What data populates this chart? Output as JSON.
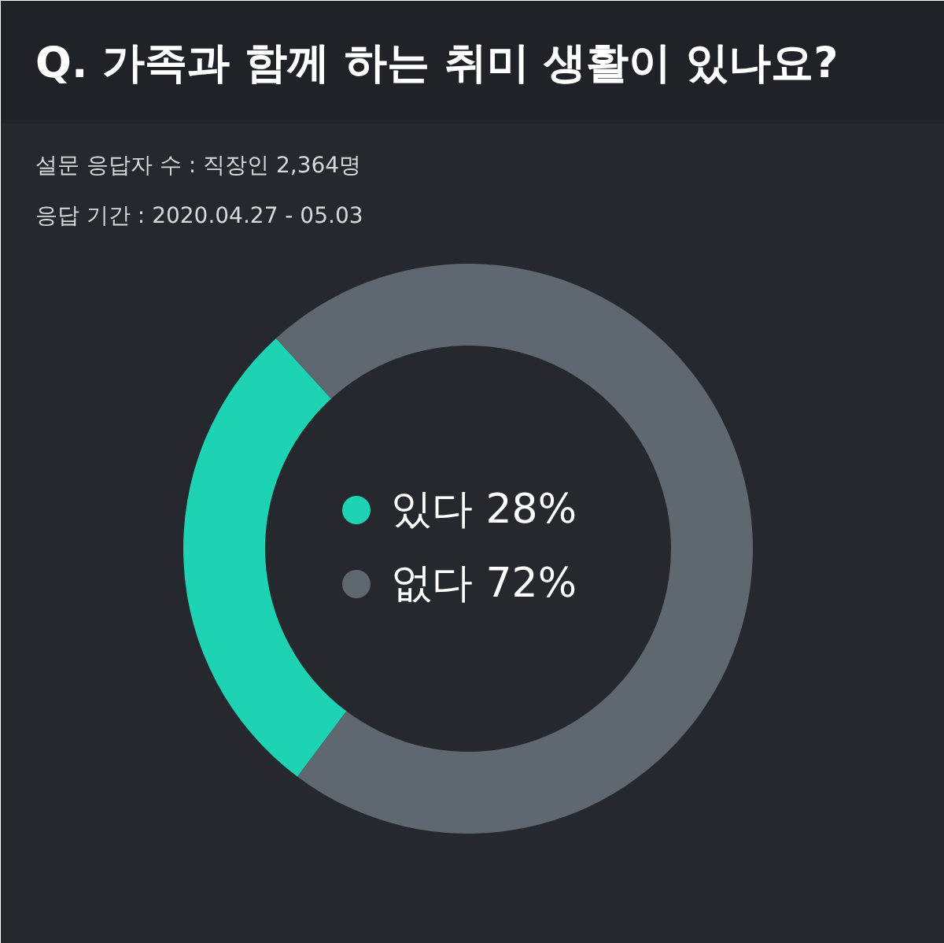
{
  "chart_data": {
    "type": "donut",
    "title": "Q. 가족과 함께 하는 취미 생활이 있나요?",
    "subtitle": "설문 응답자 수 : 직장인 2,364명",
    "annotations": [
      "응답 기간 : 2020.04.27 - 05.03"
    ],
    "categories": [
      "있다",
      "없다"
    ],
    "values": [
      28,
      72
    ],
    "colors": [
      "#1dd3b4",
      "#5f676f"
    ],
    "value_labels": [
      "28%",
      "72%"
    ],
    "legend": "center"
  }
}
